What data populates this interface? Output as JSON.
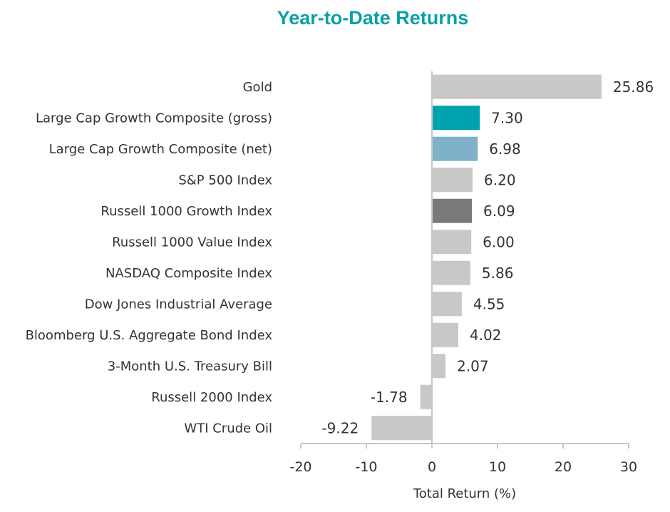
{
  "chart_data": {
    "type": "bar",
    "orientation": "horizontal",
    "title": "Year-to-Date Returns",
    "xlabel": "Total Return (%)",
    "ylabel": "",
    "xlim": [
      -20,
      30
    ],
    "xticks": [
      -20,
      -10,
      0,
      10,
      20,
      30
    ],
    "xtick_labels": [
      "-20",
      "-10",
      "0",
      "10",
      "20",
      "30"
    ],
    "grid": false,
    "categories": [
      "Gold",
      "Large Cap Growth Composite (gross)",
      "Large Cap Growth Composite (net)",
      "S&P 500 Index",
      "Russell 1000 Growth Index",
      "Russell 1000 Value Index",
      "NASDAQ Composite Index",
      "Dow Jones Industrial Average",
      "Bloomberg U.S. Aggregate Bond Index",
      "3-Month U.S. Treasury Bill",
      "Russell 2000 Index",
      "WTI Crude Oil"
    ],
    "values": [
      25.86,
      7.3,
      6.98,
      6.2,
      6.09,
      6.0,
      5.86,
      4.55,
      4.02,
      2.07,
      -1.78,
      -9.22
    ],
    "value_labels": [
      "25.86",
      "7.30",
      "6.98",
      "6.20",
      "6.09",
      "6.00",
      "5.86",
      "4.55",
      "4.02",
      "2.07",
      "-1.78",
      "-9.22"
    ],
    "bar_colors": [
      "#c8c8c8",
      "#00a3ad",
      "#7fb2c8",
      "#c8c8c8",
      "#7a7a7a",
      "#c8c8c8",
      "#c8c8c8",
      "#c8c8c8",
      "#c8c8c8",
      "#c8c8c8",
      "#c8c8c8",
      "#c8c8c8"
    ],
    "colors": {
      "title": "#0aa0a8",
      "text": "#333333",
      "axis": "#c8c8c8"
    }
  }
}
